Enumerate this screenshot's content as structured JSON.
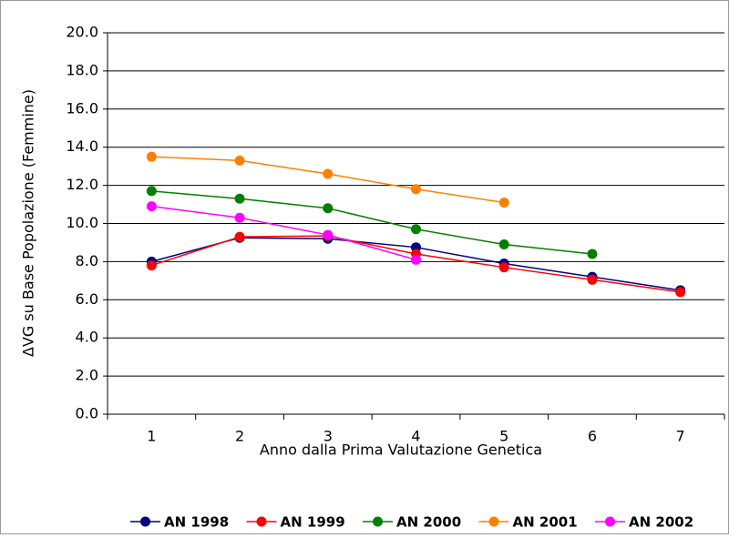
{
  "chart_data": {
    "type": "line",
    "x_label": "Anno dalla Prima Valutazione Genetica",
    "y_label": "ΔVG su Base Popolazione (Femmine)",
    "categories": [
      "1",
      "2",
      "3",
      "4",
      "5",
      "6",
      "7"
    ],
    "series": [
      {
        "name": "AN 1998",
        "color": "#000080",
        "values": [
          8.0,
          9.25,
          9.2,
          8.75,
          7.9,
          7.2,
          6.5
        ]
      },
      {
        "name": "AN 1999",
        "color": "#ff0000",
        "values": [
          7.8,
          9.3,
          9.35,
          8.4,
          7.7,
          7.05,
          6.4
        ]
      },
      {
        "name": "AN 2000",
        "color": "#008000",
        "values": [
          11.7,
          11.3,
          10.8,
          9.7,
          8.9,
          8.4,
          null
        ]
      },
      {
        "name": "AN 2001",
        "color": "#ff8000",
        "values": [
          13.5,
          13.3,
          12.6,
          11.8,
          11.1,
          null,
          null
        ]
      },
      {
        "name": "AN 2002",
        "color": "#ff00ff",
        "values": [
          10.9,
          10.3,
          9.4,
          8.1,
          null,
          null,
          null
        ]
      }
    ],
    "ylim": [
      0,
      20
    ],
    "yticks": [
      {
        "value": 0,
        "label": "0.0"
      },
      {
        "value": 2,
        "label": "2.0"
      },
      {
        "value": 4,
        "label": "4.0"
      },
      {
        "value": 6,
        "label": "6.0"
      },
      {
        "value": 8,
        "label": "8.0"
      },
      {
        "value": 10,
        "label": "10.0"
      },
      {
        "value": 12,
        "label": "12.0"
      },
      {
        "value": 14,
        "label": "14.0"
      },
      {
        "value": 16,
        "label": "16.0"
      },
      {
        "value": 18,
        "label": "18.0"
      },
      {
        "value": 20,
        "label": "20.0"
      }
    ],
    "grid": true,
    "legend": "bottom"
  }
}
